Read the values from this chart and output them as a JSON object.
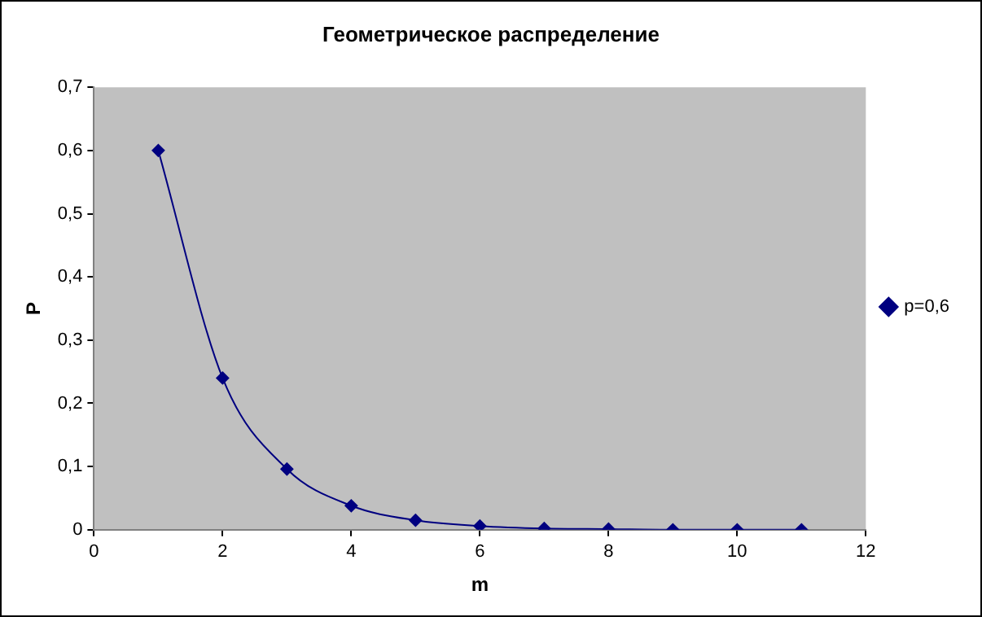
{
  "chart_data": {
    "type": "line",
    "title": "Геометрическое распределение",
    "xlabel": "m",
    "ylabel": "P",
    "x": [
      1,
      2,
      3,
      4,
      5,
      6,
      7,
      8,
      9,
      10,
      11
    ],
    "series": [
      {
        "name": "p=0,6",
        "color": "#000080",
        "values": [
          0.6,
          0.24,
          0.096,
          0.038,
          0.015,
          0.006,
          0.002,
          0.001,
          0,
          0,
          0
        ]
      }
    ],
    "xlim": [
      0,
      12
    ],
    "xticks": [
      0,
      2,
      4,
      6,
      8,
      10,
      12
    ],
    "ylim": [
      0,
      0.7
    ],
    "yticks": [
      0,
      {
        "value": 0.1,
        "label": "0,1"
      },
      {
        "value": 0.2,
        "label": "0,2"
      },
      {
        "value": 0.3,
        "label": "0,3"
      },
      {
        "value": 0.4,
        "label": "0,4"
      },
      {
        "value": 0.5,
        "label": "0,5"
      },
      {
        "value": 0.6,
        "label": "0,6"
      },
      {
        "value": 0.7,
        "label": "0,7"
      }
    ],
    "grid": false,
    "legend": "right",
    "marker": "diamond",
    "line_style": "solid"
  }
}
